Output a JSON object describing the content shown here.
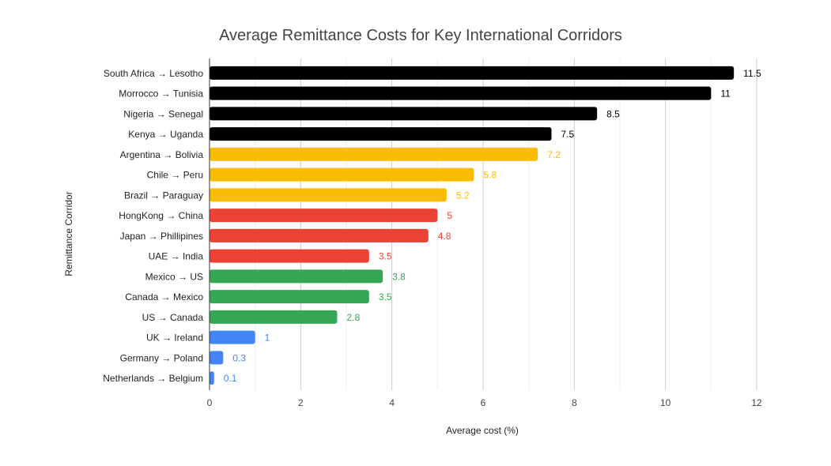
{
  "chart_data": {
    "type": "bar",
    "orientation": "horizontal",
    "title": "Average Remittance Costs for Key International Corridors",
    "xlabel": "Average cost (%)",
    "ylabel": "Remittance Corridor",
    "xlim": [
      0,
      12
    ],
    "xticks": [
      0,
      2,
      4,
      6,
      8,
      10,
      12
    ],
    "grid": true,
    "categories": [
      "South Africa → Lesotho",
      "Morrocco → Tunisia",
      "Nigeria → Senegal",
      "Kenya → Uganda",
      "Argentina → Bolivia",
      "Chile  → Peru",
      "Brazil → Paraguay",
      "HongKong → China",
      "Japan → Phillipines",
      "UAE → India",
      "Mexico → US",
      "Canada → Mexico",
      "US → Canada",
      "UK → Ireland",
      "Germany → Poland",
      "Netherlands → Belgium"
    ],
    "values": [
      11.5,
      11,
      8.5,
      7.5,
      7.2,
      5.8,
      5.2,
      5,
      4.8,
      3.5,
      3.8,
      3.5,
      2.8,
      1,
      0.3,
      0.1
    ],
    "value_labels": [
      "11.5",
      "11",
      "8.5",
      "7.5",
      "7.2",
      "5.8",
      "5.2",
      "5",
      "4.8",
      "3.5",
      "3.8",
      "3.5",
      "2.8",
      "1",
      "0.3",
      "0.1"
    ],
    "bar_colors": [
      "#000000",
      "#000000",
      "#000000",
      "#000000",
      "#fbbc04",
      "#fbbc04",
      "#fbbc04",
      "#ea4335",
      "#ea4335",
      "#ea4335",
      "#34a853",
      "#34a853",
      "#34a853",
      "#4285f4",
      "#4285f4",
      "#4285f4"
    ],
    "label_colors": [
      "#000000",
      "#000000",
      "#000000",
      "#000000",
      "#fbbc04",
      "#fbbc04",
      "#fbbc04",
      "#ea4335",
      "#ea4335",
      "#ea4335",
      "#34a853",
      "#34a853",
      "#34a853",
      "#4285f4",
      "#4285f4",
      "#4285f4"
    ]
  }
}
